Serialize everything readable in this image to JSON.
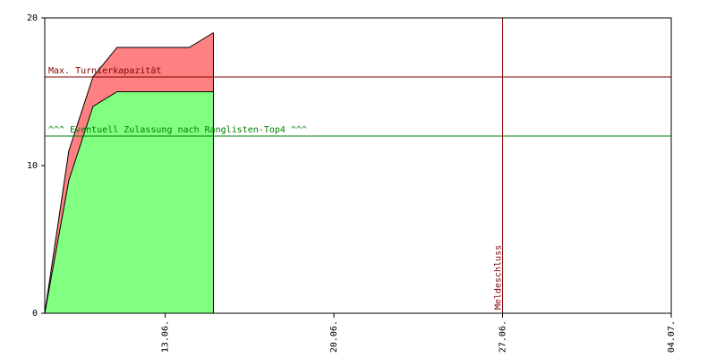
{
  "chart_data": {
    "type": "stacked-area",
    "x": [
      "08.06.",
      "09.06.",
      "10.06.",
      "11.06.",
      "14.06.",
      "15.06."
    ],
    "series": [
      {
        "color": "#80ff80",
        "values": [
          0,
          9,
          14,
          15,
          15,
          15
        ]
      },
      {
        "color": "#ff8080",
        "values": [
          0,
          2,
          2,
          3,
          3,
          4
        ]
      }
    ],
    "xlim": [
      "08.06.",
      "04.07."
    ],
    "xticks": [
      "13.06.",
      "20.06.",
      "27.06.",
      "04.07."
    ],
    "ylim": [
      0,
      20
    ],
    "yticks": [
      0,
      10,
      20
    ],
    "reference_lines": [
      {
        "label": "Max. Turnierkapazität",
        "y": 16,
        "color": "#800000"
      },
      {
        "label": "^^^ Eventuell Zulassung nach Ranglisten-Top4 ^^^",
        "y": 12,
        "color": "#008000"
      },
      {
        "label": "Meldeschluss",
        "x": "27.06.",
        "color": "#800000"
      }
    ]
  }
}
